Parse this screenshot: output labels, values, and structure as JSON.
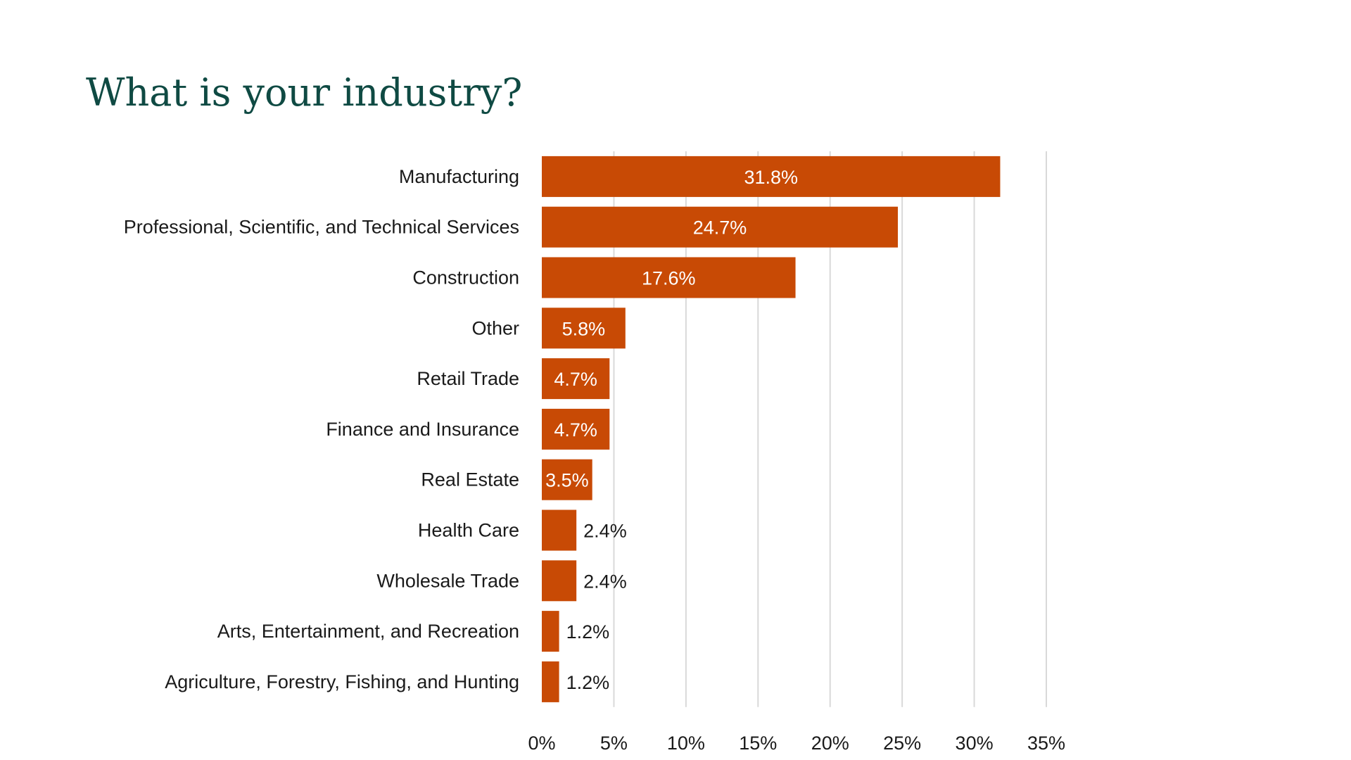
{
  "slide": {
    "title": "What is your industry?"
  },
  "chart_data": {
    "type": "bar",
    "orientation": "horizontal",
    "categories": [
      "Manufacturing",
      "Professional, Scientific, and Technical Services",
      "Construction",
      "Other",
      "Retail Trade",
      "Finance and Insurance",
      "Real Estate",
      "Health Care",
      "Wholesale Trade",
      "Arts, Entertainment, and Recreation",
      "Agriculture, Forestry, Fishing, and Hunting"
    ],
    "values": [
      31.8,
      24.7,
      17.6,
      5.8,
      4.7,
      4.7,
      3.5,
      2.4,
      2.4,
      1.2,
      1.2
    ],
    "data_labels": [
      "31.8%",
      "24.7%",
      "17.6%",
      "5.8%",
      "4.7%",
      "4.7%",
      "3.5%",
      "2.4%",
      "2.4%",
      "1.2%",
      "1.2%"
    ],
    "xlim": [
      0,
      35
    ],
    "x_ticks": [
      0,
      5,
      10,
      15,
      20,
      25,
      30,
      35
    ],
    "x_tick_labels": [
      "0%",
      "5%",
      "10%",
      "15%",
      "20%",
      "25%",
      "30%",
      "35%"
    ],
    "grid": "vertical",
    "legend": "none",
    "bar_color": "#c84a05",
    "grid_color": "#d9d9d9"
  }
}
